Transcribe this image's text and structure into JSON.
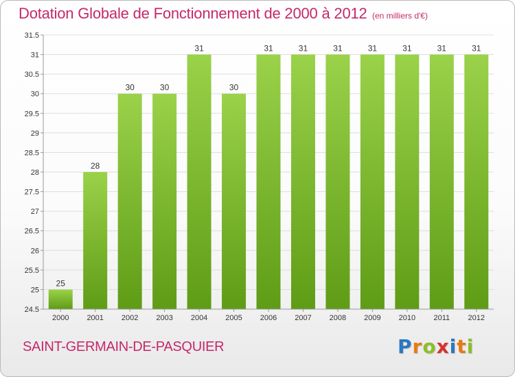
{
  "header": {
    "title": "Dotation Globale de Fonctionnement de 2000 à 2012",
    "unit": "(en milliers d'€)"
  },
  "footer": {
    "commune": "SAINT-GERMAIN-DE-PASQUIER",
    "logo_text": "Proxiti",
    "logo_colors": [
      "#2a78c2",
      "#e87a14",
      "#8cbf26",
      "#d8322c",
      "#2a78c2",
      "#e87a14",
      "#8cbf26"
    ]
  },
  "colors": {
    "accent": "#c4286a",
    "bar_light": "#9ad24a",
    "bar_dark": "#5f9c16",
    "grid": "#dddddd",
    "axis": "#999999",
    "text": "#333333"
  },
  "chart_data": {
    "type": "bar",
    "categories": [
      "2000",
      "2001",
      "2002",
      "2003",
      "2004",
      "2005",
      "2006",
      "2007",
      "2008",
      "2009",
      "2010",
      "2011",
      "2012"
    ],
    "values": [
      25,
      28,
      30,
      30,
      31,
      30,
      31,
      31,
      31,
      31,
      31,
      31,
      31
    ],
    "data_labels": [
      "25",
      "28",
      "30",
      "30",
      "31",
      "30",
      "31",
      "31",
      "31",
      "31",
      "31",
      "31",
      "31"
    ],
    "yticks": [
      24.5,
      25,
      25.5,
      26,
      26.5,
      27,
      27.5,
      28,
      28.5,
      29,
      29.5,
      30,
      30.5,
      31,
      31.5
    ],
    "ytick_labels": [
      "24.5",
      "25",
      "25.5",
      "26",
      "26.5",
      "27",
      "27.5",
      "28",
      "28.5",
      "29",
      "29.5",
      "30",
      "30.5",
      "31",
      "31.5"
    ],
    "ylim": [
      24.5,
      31.5
    ],
    "grid": true,
    "title": "Dotation Globale de Fonctionnement de 2000 à 2012",
    "xlabel": "",
    "ylabel": ""
  }
}
